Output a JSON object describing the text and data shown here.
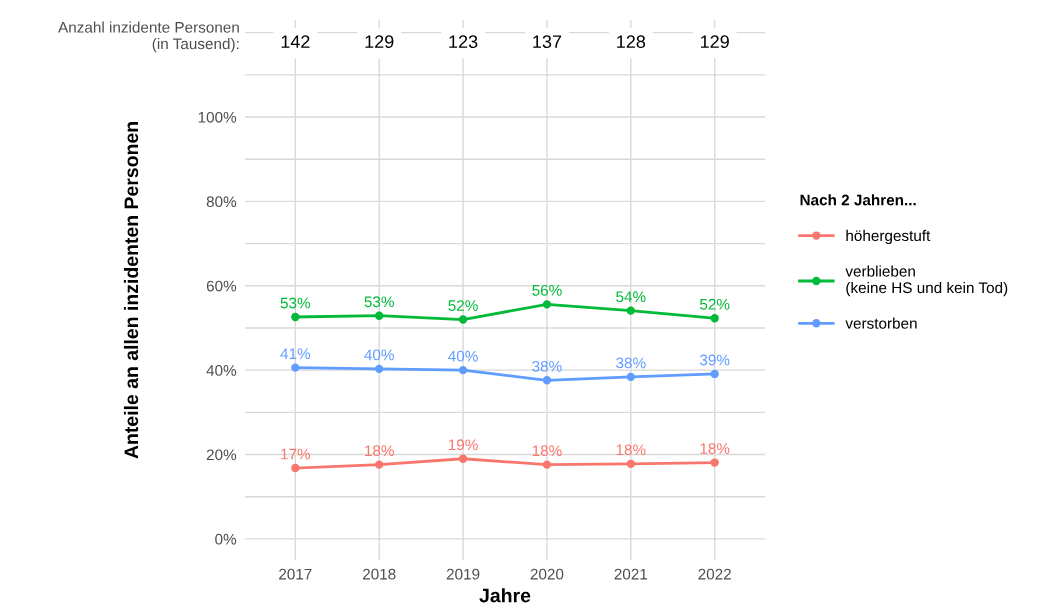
{
  "chart_data": {
    "type": "line",
    "xlabel": "Jahre",
    "ylabel": "Anteile an allen inzidenten Personen",
    "legend_title": "Nach 2 Jahren...",
    "categories": [
      "2017",
      "2018",
      "2019",
      "2020",
      "2021",
      "2022"
    ],
    "series": [
      {
        "name": "höhergestuft",
        "color": "#f8766d",
        "values": [
          16.8,
          17.6,
          19.0,
          17.6,
          17.8,
          18.1
        ],
        "value_labels": [
          "17%",
          "18%",
          "19%",
          "18%",
          "18%",
          "18%"
        ]
      },
      {
        "name": "verblieben\n(keine HS und kein Tod)",
        "color": "#00ba38",
        "values": [
          52.6,
          52.9,
          52.0,
          55.6,
          54.1,
          52.3
        ],
        "value_labels": [
          "53%",
          "53%",
          "52%",
          "56%",
          "54%",
          "52%"
        ]
      },
      {
        "name": "verstorben",
        "color": "#619cff",
        "values": [
          40.6,
          40.3,
          40.0,
          37.6,
          38.4,
          39.1
        ],
        "value_labels": [
          "41%",
          "40%",
          "40%",
          "38%",
          "38%",
          "39%"
        ]
      }
    ],
    "ylim": [
      -5,
      123
    ],
    "yticks": [
      {
        "value": 0,
        "label": "0%"
      },
      {
        "value": 10,
        "label": null
      },
      {
        "value": 20,
        "label": "20%"
      },
      {
        "value": 30,
        "label": null
      },
      {
        "value": 40,
        "label": "40%"
      },
      {
        "value": 50,
        "label": null
      },
      {
        "value": 60,
        "label": "60%"
      },
      {
        "value": 70,
        "label": null
      },
      {
        "value": 80,
        "label": "80%"
      },
      {
        "value": 90,
        "label": null
      },
      {
        "value": 100,
        "label": "100%"
      },
      {
        "value": 110,
        "label": null
      },
      {
        "value": 120,
        "label": null
      }
    ],
    "annotations": [
      "Anzahl inzidente Personen\n(in Tausend):",
      "142",
      "129",
      "123",
      "137",
      "128",
      "129"
    ],
    "grid": true,
    "legend": "right",
    "marker": "circle",
    "line_style": "solid"
  }
}
